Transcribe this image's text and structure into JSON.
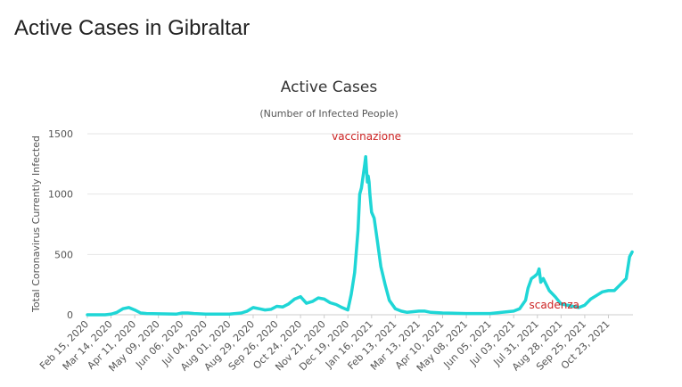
{
  "header": {
    "title": "Active Cases in Gibraltar"
  },
  "chart_data": {
    "type": "line",
    "title": "Active Cases",
    "subtitle": "(Number of Infected People)",
    "ylabel": "Total Coronavirus Currently Infected",
    "xlabel": "",
    "ylim": [
      0,
      1500
    ],
    "yticks": [
      0,
      500,
      1000,
      1500
    ],
    "grid": true,
    "line_color": "#1fd6d6",
    "annotation_color": "#cc2222",
    "xticks": [
      "Feb 15, 2020",
      "Mar 14, 2020",
      "Apr 11, 2020",
      "May 09, 2020",
      "Jun 06, 2020",
      "Jul 04, 2020",
      "Aug 01, 2020",
      "Aug 29, 2020",
      "Sep 26, 2020",
      "Oct 24, 2020",
      "Nov 21, 2020",
      "Dec 19, 2020",
      "Jan 16, 2021",
      "Feb 13, 2021",
      "Mar 13, 2021",
      "Apr 10, 2021",
      "May 08, 2021",
      "Jun 05, 2021",
      "Jul 03, 2021",
      "Jul 31, 2021",
      "Aug 28, 2021",
      "Sep 25, 2021",
      "Oct 23, 2021"
    ],
    "annotations": [
      {
        "text": "vaccinazione",
        "x": "2021-01-10",
        "y": 1450
      },
      {
        "text": "scadenza",
        "x": "2021-08-20",
        "y": 50
      }
    ],
    "series": [
      {
        "x": [
          "2020-02-15",
          "2020-03-07",
          "2020-03-14",
          "2020-03-21",
          "2020-03-28",
          "2020-04-04",
          "2020-04-11",
          "2020-04-18",
          "2020-04-25",
          "2020-05-09",
          "2020-05-30",
          "2020-06-06",
          "2020-06-13",
          "2020-06-20",
          "2020-07-04",
          "2020-08-01",
          "2020-08-15",
          "2020-08-22",
          "2020-08-29",
          "2020-09-05",
          "2020-09-12",
          "2020-09-19",
          "2020-09-26",
          "2020-10-03",
          "2020-10-10",
          "2020-10-17",
          "2020-10-24",
          "2020-10-31",
          "2020-11-07",
          "2020-11-14",
          "2020-11-21",
          "2020-11-28",
          "2020-12-05",
          "2020-12-12",
          "2020-12-19",
          "2020-12-23",
          "2020-12-27",
          "2020-12-31",
          "2021-01-02",
          "2021-01-04",
          "2021-01-06",
          "2021-01-08",
          "2021-01-09",
          "2021-01-10",
          "2021-01-11",
          "2021-01-12",
          "2021-01-13",
          "2021-01-14",
          "2021-01-16",
          "2021-01-19",
          "2021-01-23",
          "2021-01-27",
          "2021-02-01",
          "2021-02-06",
          "2021-02-13",
          "2021-02-20",
          "2021-02-27",
          "2021-03-13",
          "2021-03-20",
          "2021-03-27",
          "2021-04-10",
          "2021-05-08",
          "2021-06-05",
          "2021-06-19",
          "2021-07-03",
          "2021-07-10",
          "2021-07-17",
          "2021-07-20",
          "2021-07-24",
          "2021-07-28",
          "2021-07-31",
          "2021-08-02",
          "2021-08-04",
          "2021-08-07",
          "2021-08-14",
          "2021-08-21",
          "2021-08-28",
          "2021-09-04",
          "2021-09-11",
          "2021-09-18",
          "2021-09-25",
          "2021-10-02",
          "2021-10-09",
          "2021-10-16",
          "2021-10-23",
          "2021-10-30",
          "2021-11-06",
          "2021-11-13",
          "2021-11-17",
          "2021-11-20"
        ],
        "y": [
          0,
          0,
          5,
          20,
          50,
          60,
          40,
          15,
          10,
          8,
          5,
          15,
          15,
          10,
          5,
          5,
          15,
          30,
          60,
          50,
          40,
          45,
          70,
          65,
          90,
          130,
          150,
          95,
          110,
          140,
          130,
          100,
          85,
          60,
          40,
          170,
          350,
          700,
          1000,
          1050,
          1150,
          1250,
          1310,
          1200,
          1100,
          1150,
          1100,
          1000,
          850,
          800,
          600,
          400,
          250,
          120,
          50,
          30,
          20,
          30,
          30,
          20,
          15,
          10,
          10,
          20,
          30,
          50,
          120,
          220,
          300,
          320,
          340,
          380,
          270,
          300,
          200,
          150,
          90,
          80,
          70,
          60,
          80,
          130,
          160,
          190,
          200,
          200,
          250,
          300,
          480,
          520
        ]
      }
    ]
  }
}
